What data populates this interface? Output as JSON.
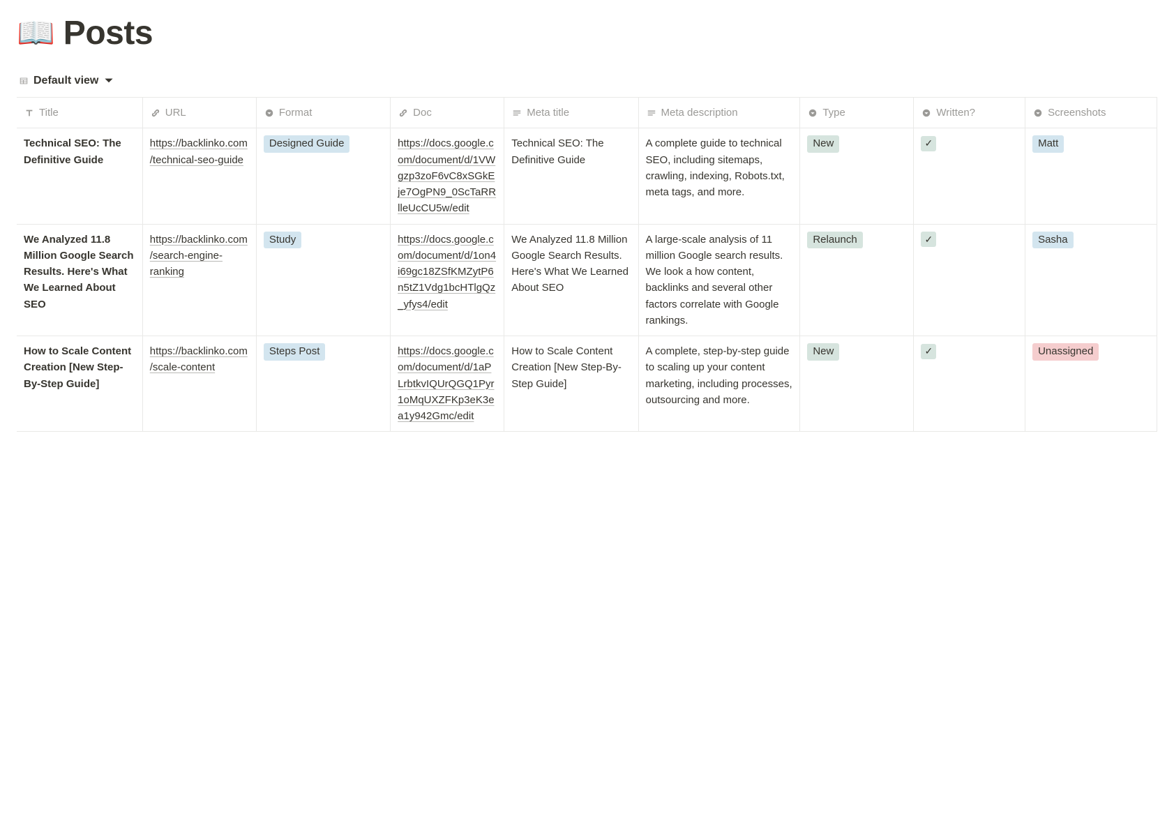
{
  "page": {
    "icon": "📖",
    "title": "Posts",
    "view_label": "Default view"
  },
  "columns": [
    {
      "key": "title",
      "label": "Title",
      "icon": "text-title"
    },
    {
      "key": "url",
      "label": "URL",
      "icon": "link"
    },
    {
      "key": "format",
      "label": "Format",
      "icon": "select"
    },
    {
      "key": "doc",
      "label": "Doc",
      "icon": "link"
    },
    {
      "key": "meta_title",
      "label": "Meta title",
      "icon": "lines"
    },
    {
      "key": "meta_desc",
      "label": "Meta description",
      "icon": "lines"
    },
    {
      "key": "type",
      "label": "Type",
      "icon": "select"
    },
    {
      "key": "written",
      "label": "Written?",
      "icon": "select"
    },
    {
      "key": "screenshots",
      "label": "Screenshots",
      "icon": "select"
    }
  ],
  "tag_colors": {
    "Designed Guide": "#d3e5ef",
    "Study": "#d3e5ef",
    "Steps Post": "#d3e5ef",
    "New": "#d6e4de",
    "Relaunch": "#d6e4de",
    "Matt": "#d3e5ef",
    "Sasha": "#d3e5ef",
    "Unassigned": "#f5cdce",
    "check": "#d6e4de"
  },
  "rows": [
    {
      "title": "Technical SEO: The Definitive Guide",
      "url": "https://backlinko.com/technical-seo-guide",
      "format": "Designed Guide",
      "doc": "https://docs.google.com/document/d/1VWgzp3zoF6vC8xSGkEje7OgPN9_0ScTaRRlleUcCU5w/edit",
      "meta_title": "Technical SEO: The Definitive Guide",
      "meta_desc": "A complete guide to technical SEO, including sitemaps, crawling, indexing, Robots.txt, meta tags, and more.",
      "type": "New",
      "written": true,
      "screenshots": "Matt"
    },
    {
      "title": "We Analyzed 11.8 Million Google Search Results. Here's What We Learned About SEO",
      "url": "https://backlinko.com/search-engine-ranking",
      "format": "Study",
      "doc": "https://docs.google.com/document/d/1on4i69gc18ZSfKMZytP6n5tZ1Vdg1bcHTlgQz_yfys4/edit",
      "meta_title": "We Analyzed 11.8 Million Google Search Results. Here's What We Learned About SEO",
      "meta_desc": "A large-scale analysis of 11 million Google search results. We look a how content, backlinks and several other factors correlate with Google rankings.",
      "type": "Relaunch",
      "written": true,
      "screenshots": "Sasha"
    },
    {
      "title": "How to Scale Content Creation [New Step-By-Step Guide]",
      "url": "https://backlinko.com/scale-content",
      "format": "Steps Post",
      "doc": "https://docs.google.com/document/d/1aPLrbtkvIQUrQGQ1Pyr1oMqUXZFKp3eK3ea1y942Gmc/edit",
      "meta_title": "How to Scale Content Creation [New Step-By-Step Guide]",
      "meta_desc": "A complete, step-by-step guide to scaling up your content marketing, including processes, outsourcing and more.",
      "type": "New",
      "written": true,
      "screenshots": "Unassigned"
    }
  ]
}
